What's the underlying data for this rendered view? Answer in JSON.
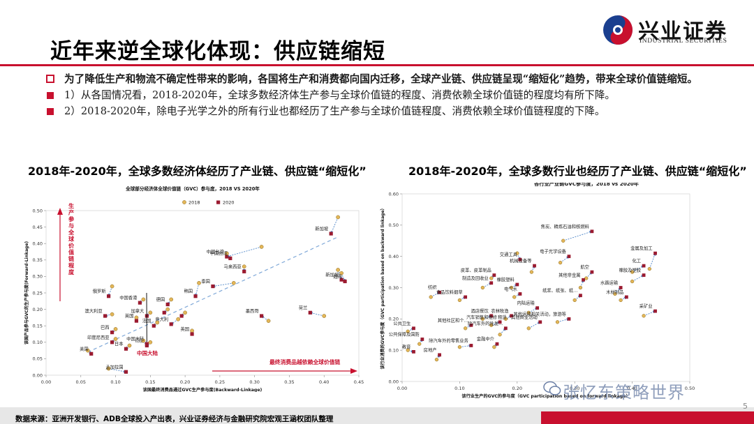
{
  "header": {
    "title": "近年来逆全球化体现：供应链缩短",
    "logo_cn": "兴业证券",
    "logo_en": "INDUSTRIAL SECURITIES"
  },
  "bullets": {
    "main": "为了降低生产和物流不确定性带来的影响，各国将生产和消费都向国内迁移，全球产业链、供应链呈现“缩短化”趋势，带来全球价值链缩短。",
    "sub1": "1）从各国情况看，2018-2020年，全球多数经济体生产参与全球价值链的程度、消费依赖全球价值链的程度均有所下降。",
    "sub2": "2）2018-2020年，除电子光学之外的所有行业也都经历了生产参与全球价值链程度、消费依赖全球价值链程度的下降。"
  },
  "panels": {
    "left_title": "2018年-2020年，全球多数经济体经历了产业链、供应链“缩短化”",
    "right_title": "2018年-2020年，全球多数行业也经历了产业链、供应链“缩短化”"
  },
  "chart_data": [
    {
      "type": "scatter",
      "title": "全球部分经济体全球价值链（GVC）参与度，2018 VS 2020年",
      "xlabel": "该国最终消费品通过GVC生产参与度(Backward-Linkage)",
      "ylabel": "该国产品参与GVC的生产参与度(Forward-Linkage)",
      "xlim": [
        0,
        0.45
      ],
      "ylim": [
        0,
        0.5
      ],
      "xticks": [
        "0.00",
        "0.05",
        "0.10",
        "0.15",
        "0.20",
        "0.25",
        "0.30",
        "0.35",
        "0.40",
        "0.45"
      ],
      "yticks": [
        "0.00",
        "0.05",
        "0.10",
        "0.15",
        "0.20",
        "0.25",
        "0.30",
        "0.35",
        "0.40",
        "0.45",
        "0.50"
      ],
      "legend": [
        "2018",
        "2020"
      ],
      "annotation_y": "生产参与全球价值链程度",
      "annotation_x": "最终消费品越依赖全球价值链",
      "highlight_label": "中国大陆",
      "points": [
        {
          "label": "新加坡",
          "x2018": 0.42,
          "y2018": 0.48,
          "x2020": 0.41,
          "y2020": 0.43
        },
        {
          "label": "新加坡",
          "x2018": 0.42,
          "y2018": 0.32,
          "x2020": 0.425,
          "y2020": 0.29
        },
        {
          "label": "越南",
          "x2018": 0.425,
          "y2018": 0.31,
          "x2020": 0.43,
          "y2020": 0.285
        },
        {
          "label": "中国台湾",
          "x2018": 0.31,
          "y2018": 0.39,
          "x2020": 0.26,
          "y2020": 0.36
        },
        {
          "label": "中国台湾",
          "x2018": 0.26,
          "y2018": 0.37,
          "x2020": 0.265,
          "y2020": 0.355
        },
        {
          "label": "马来西亚",
          "x2018": 0.285,
          "y2018": 0.33,
          "x2020": 0.285,
          "y2020": 0.315
        },
        {
          "label": "泰国",
          "x2018": 0.27,
          "y2018": 0.28,
          "x2020": 0.24,
          "y2020": 0.27
        },
        {
          "label": "韩国",
          "x2018": 0.22,
          "y2018": 0.28,
          "x2020": 0.215,
          "y2020": 0.24
        },
        {
          "label": "俄罗斯",
          "x2018": 0.095,
          "y2018": 0.27,
          "x2020": 0.09,
          "y2020": 0.24
        },
        {
          "label": "中国香港",
          "x2018": 0.14,
          "y2018": 0.23,
          "x2020": 0.135,
          "y2020": 0.22
        },
        {
          "label": "德国",
          "x2018": 0.18,
          "y2018": 0.23,
          "x2020": 0.175,
          "y2020": 0.215
        },
        {
          "label": "加拿大",
          "x2018": 0.15,
          "y2018": 0.19,
          "x2020": 0.145,
          "y2020": 0.18
        },
        {
          "label": "英国",
          "x2018": 0.13,
          "y2018": 0.175,
          "x2020": 0.13,
          "y2020": 0.165
        },
        {
          "label": "意大利",
          "x2018": 0.19,
          "y2018": 0.17,
          "x2020": 0.18,
          "y2020": 0.155
        },
        {
          "label": "法国",
          "x2018": 0.16,
          "y2018": 0.16,
          "x2020": 0.155,
          "y2020": 0.15
        },
        {
          "label": "澳大利亚",
          "x2018": 0.095,
          "y2018": 0.185,
          "x2020": 0.085,
          "y2020": 0.18
        },
        {
          "label": "巴西",
          "x2018": 0.1,
          "y2018": 0.14,
          "x2020": 0.095,
          "y2020": 0.13
        },
        {
          "label": "印度尼西亚",
          "x2018": 0.1,
          "y2018": 0.11,
          "x2020": 0.095,
          "y2020": 0.1
        },
        {
          "label": "日本",
          "x2018": 0.12,
          "y2018": 0.09,
          "x2020": 0.115,
          "y2020": 0.08
        },
        {
          "label": "印度",
          "x2018": 0.15,
          "y2018": 0.1,
          "x2020": 0.145,
          "y2020": 0.09
        },
        {
          "label": "墨西哥",
          "x2018": 0.32,
          "y2018": 0.165,
          "x2020": 0.31,
          "y2020": 0.18
        },
        {
          "label": "美国",
          "x2018": 0.06,
          "y2018": 0.075,
          "x2020": 0.065,
          "y2020": 0.065
        },
        {
          "label": "孟加拉国",
          "x2018": 0.09,
          "y2018": 0.02,
          "x2020": 0.115,
          "y2020": 0.01
        },
        {
          "label": "中国大陆",
          "x2018": 0.14,
          "y2018": 0.105,
          "x2020": 0.145,
          "y2020": 0.095
        },
        {
          "label": "英国",
          "x2018": 0.21,
          "y2018": 0.135,
          "x2020": 0.21,
          "y2020": 0.125
        },
        {
          "label": "荷兰",
          "x2018": 0.4,
          "y2018": 0.18,
          "x2020": 0.38,
          "y2020": 0.19
        },
        {
          "label": "",
          "x2018": 0.175,
          "y2018": 0.2,
          "x2020": 0.17,
          "y2020": 0.19
        },
        {
          "label": "",
          "x2018": 0.2,
          "y2018": 0.19,
          "x2020": 0.195,
          "y2020": 0.18
        }
      ]
    },
    {
      "type": "scatter",
      "title": "各行业产业链GVC参与度，2018 vs 2020年",
      "xlabel": "该行业生产的GVC的参与度（GVC participation based on forward linkage）",
      "ylabel": "该行业消费的GVC参与度（GVC participation based on backward linkage）",
      "xlim": [
        0,
        0.5
      ],
      "ylim": [
        0,
        0.6
      ],
      "xticks": [
        "0.00",
        "0.10",
        "0.20",
        "0.30",
        "0.40",
        "0.50"
      ],
      "yticks": [
        "0.00",
        "0.10",
        "0.20",
        "0.30",
        "0.40",
        "0.50",
        "0.60"
      ],
      "points": [
        {
          "label": "焦炭、精炼石油和核燃料",
          "x2018": 0.28,
          "y2018": 0.45,
          "x2020": 0.33,
          "y2020": 0.48
        },
        {
          "label": "交通工具",
          "x2018": 0.2,
          "y2018": 0.41,
          "x2020": 0.205,
          "y2020": 0.39
        },
        {
          "label": "电子光学设备",
          "x2018": 0.275,
          "y2018": 0.38,
          "x2020": 0.29,
          "y2020": 0.4
        },
        {
          "label": "机械设备等",
          "x2018": 0.225,
          "y2018": 0.35,
          "x2020": 0.23,
          "y2020": 0.37
        },
        {
          "label": "皮革、皮革制品",
          "x2018": 0.155,
          "y2018": 0.33,
          "x2020": 0.16,
          "y2020": 0.34
        },
        {
          "label": "橡胶塑料",
          "x2018": 0.19,
          "y2018": 0.3,
          "x2020": 0.2,
          "y2020": 0.31
        },
        {
          "label": "化工",
          "x2018": 0.4,
          "y2018": 0.35,
          "x2020": 0.42,
          "y2020": 0.37
        },
        {
          "label": "金属及加工",
          "x2018": 0.43,
          "y2018": 0.36,
          "x2020": 0.44,
          "y2020": 0.41
        },
        {
          "label": "橡胶及塑胶",
          "x2018": 0.4,
          "y2018": 0.32,
          "x2020": 0.42,
          "y2020": 0.34
        },
        {
          "label": "航空",
          "x2018": 0.32,
          "y2018": 0.33,
          "x2020": 0.33,
          "y2020": 0.35
        },
        {
          "label": "其他非金属",
          "x2018": 0.31,
          "y2018": 0.3,
          "x2020": 0.315,
          "y2020": 0.325
        },
        {
          "label": "制造及回收业",
          "x2018": 0.14,
          "y2018": 0.3,
          "x2020": 0.155,
          "y2020": 0.315
        },
        {
          "label": "电气水",
          "x2018": 0.195,
          "y2018": 0.27,
          "x2020": 0.205,
          "y2020": 0.28
        },
        {
          "label": "水路运输",
          "x2018": 0.37,
          "y2018": 0.28,
          "x2020": 0.38,
          "y2020": 0.3
        },
        {
          "label": "纸浆、纸张、纸…",
          "x2018": 0.3,
          "y2018": 0.26,
          "x2020": 0.31,
          "y2020": 0.275
        },
        {
          "label": "木材制品",
          "x2018": 0.38,
          "y2018": 0.26,
          "x2020": 0.39,
          "y2020": 0.27
        },
        {
          "label": "采矿业",
          "x2018": 0.42,
          "y2018": 0.21,
          "x2020": 0.44,
          "y2020": 0.225
        },
        {
          "label": "纺织",
          "x2018": 0.05,
          "y2018": 0.27,
          "x2020": 0.065,
          "y2020": 0.285
        },
        {
          "label": "食品饮料烟草",
          "x2018": 0.1,
          "y2018": 0.26,
          "x2020": 0.11,
          "y2020": 0.27
        },
        {
          "label": "内陆运输",
          "x2018": 0.22,
          "y2018": 0.22,
          "x2020": 0.235,
          "y2020": 0.235
        },
        {
          "label": "农林牧渔",
          "x2018": 0.18,
          "y2018": 0.2,
          "x2020": 0.19,
          "y2020": 0.21
        },
        {
          "label": "酒店餐饮",
          "x2018": 0.14,
          "y2018": 0.2,
          "x2020": 0.155,
          "y2020": 0.21
        },
        {
          "label": "汽车销售和维修",
          "x2018": 0.155,
          "y2018": 0.18,
          "x2020": 0.17,
          "y2020": 0.19
        },
        {
          "label": "其他社区和个…",
          "x2018": 0.11,
          "y2018": 0.17,
          "x2020": 0.12,
          "y2020": 0.18
        },
        {
          "label": "租赁、其他商业活动",
          "x2018": 0.22,
          "y2018": 0.17,
          "x2020": 0.24,
          "y2020": 0.19
        },
        {
          "label": "其他运输相关活动，旅游等",
          "x2018": 0.27,
          "y2018": 0.19,
          "x2020": 0.29,
          "y2020": 0.2
        },
        {
          "label": "除汽车外的批发…",
          "x2018": 0.17,
          "y2018": 0.15,
          "x2020": 0.18,
          "y2020": 0.17
        },
        {
          "label": "金融中介",
          "x2018": 0.16,
          "y2018": 0.11,
          "x2020": 0.165,
          "y2020": 0.12
        },
        {
          "label": "除汽车外的零售业务",
          "x2018": 0.1,
          "y2018": 0.11,
          "x2020": 0.12,
          "y2020": 0.115
        },
        {
          "label": "公共卫生",
          "x2018": 0.01,
          "y2018": 0.16,
          "x2020": 0.02,
          "y2020": 0.17
        },
        {
          "label": "公共保障及国防",
          "x2018": 0.03,
          "y2018": 0.12,
          "x2020": 0.035,
          "y2020": 0.135
        },
        {
          "label": "教育",
          "x2018": 0.01,
          "y2018": 0.1,
          "x2020": 0.02,
          "y2020": 0.095
        },
        {
          "label": "房地产",
          "x2018": 0.06,
          "y2018": 0.07,
          "x2020": 0.065,
          "y2020": 0.085
        }
      ]
    }
  ],
  "footer": {
    "source": "数据来源：亚洲开发银行、ADB全球投入产出表，兴业证券经济与金融研究院宏观王涵权团队整理",
    "page": "5",
    "watermark": "张忆东策略世界"
  },
  "colors": {
    "brand_red": "#c8102e",
    "point_2018": "#e3b658",
    "point_2020": "#9b1b30",
    "arrow": "#3a78c2"
  }
}
